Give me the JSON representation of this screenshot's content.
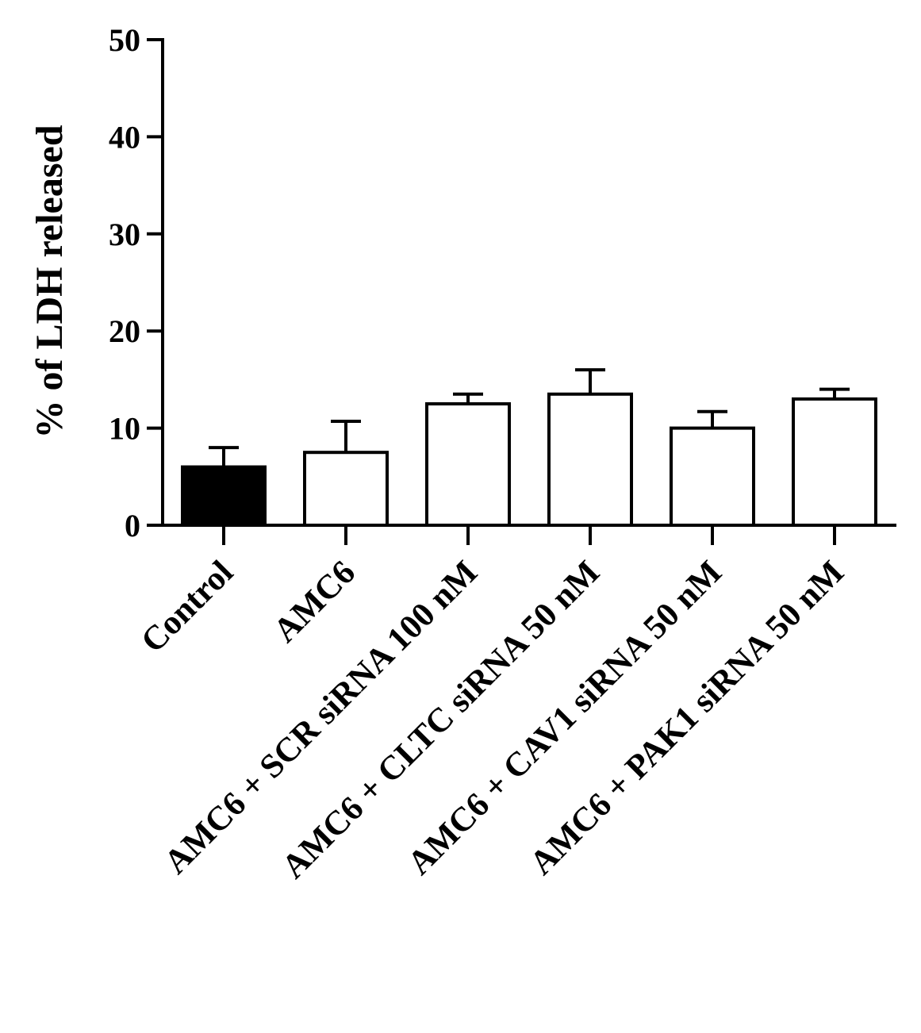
{
  "chart_data": {
    "type": "bar",
    "title": "",
    "xlabel": "",
    "ylabel": "% of LDH released",
    "ylim": [
      0,
      50
    ],
    "yticks": [
      0,
      10,
      20,
      30,
      40,
      50
    ],
    "grid": false,
    "categories": [
      "Control",
      "AMC6",
      "AMC6 + SCR siRNA 100 nM",
      "AMC6 + CLTC siRNA 50 nM",
      "AMC6 + CAV1 siRNA 50 nM",
      "AMC6 + PAK1 siRNA 50 nM"
    ],
    "values": [
      6.0,
      7.5,
      12.5,
      13.5,
      10.0,
      13.0
    ],
    "errors": [
      2.0,
      3.2,
      1.0,
      2.5,
      1.7,
      1.0
    ],
    "bar_fill": [
      "#000000",
      "#ffffff",
      "#ffffff",
      "#ffffff",
      "#ffffff",
      "#ffffff"
    ],
    "bar_stroke": "#000000"
  }
}
